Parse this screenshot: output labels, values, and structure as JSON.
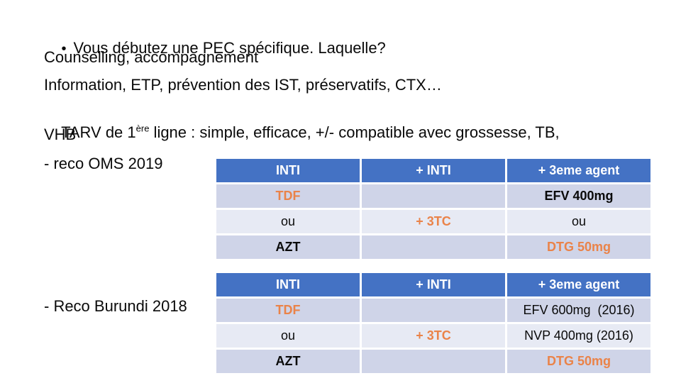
{
  "body": {
    "bullet": "•",
    "line1": "Vous débutez une PEC spécifique. Laquelle?",
    "line2": "Counselling, accompagnement",
    "line3": "Information, ETP, prévention des IST, préservatifs, CTX…",
    "line4_pre": "TARV de 1",
    "line4_sup": "ère",
    "line4_post": " ligne : simple, efficace, +/- compatible avec grossesse, TB,",
    "line5": "VHB",
    "label_oms": "- reco OMS 2019",
    "label_burundi": "- Reco Burundi 2018"
  },
  "tables": {
    "oms": {
      "headers": [
        "INTI",
        "+ INTI",
        "+ 3eme agent"
      ],
      "rows": [
        {
          "cells": [
            {
              "text": "TDF",
              "style": "orange-bold"
            },
            {
              "text": "",
              "style": "plain"
            },
            {
              "text": "EFV 400mg",
              "style": "black-bold"
            }
          ]
        },
        {
          "cells": [
            {
              "text": "ou",
              "style": "plain"
            },
            {
              "text": "+ 3TC",
              "style": "orange-bold"
            },
            {
              "text": "ou",
              "style": "plain"
            }
          ]
        },
        {
          "cells": [
            {
              "text": "AZT",
              "style": "black-bold"
            },
            {
              "text": "",
              "style": "plain"
            },
            {
              "text": "DTG 50mg",
              "style": "orange-bold"
            }
          ]
        }
      ]
    },
    "burundi": {
      "headers": [
        "INTI",
        "+ INTI",
        "+ 3eme agent"
      ],
      "rows": [
        {
          "cells": [
            {
              "text": "TDF",
              "style": "orange-bold"
            },
            {
              "text": "",
              "style": "plain"
            },
            {
              "text": "EFV 600mg  (2016)",
              "style": "plain"
            }
          ]
        },
        {
          "cells": [
            {
              "text": "ou",
              "style": "plain"
            },
            {
              "text": "+ 3TC",
              "style": "orange-bold"
            },
            {
              "text": "NVP 400mg (2016)",
              "style": "plain"
            }
          ]
        },
        {
          "cells": [
            {
              "text": "AZT",
              "style": "black-bold"
            },
            {
              "text": "",
              "style": "plain"
            },
            {
              "text": "DTG 50mg",
              "style": "orange-bold"
            }
          ]
        }
      ]
    }
  },
  "colors": {
    "header_bg": "#4472C4",
    "header_text": "#FFFFFF",
    "band_dark": "#CFD4E8",
    "band_light": "#E7EAF4",
    "orange": "#EA8349",
    "body_text": "#0A0A0A",
    "background": "#FFFFFF"
  }
}
